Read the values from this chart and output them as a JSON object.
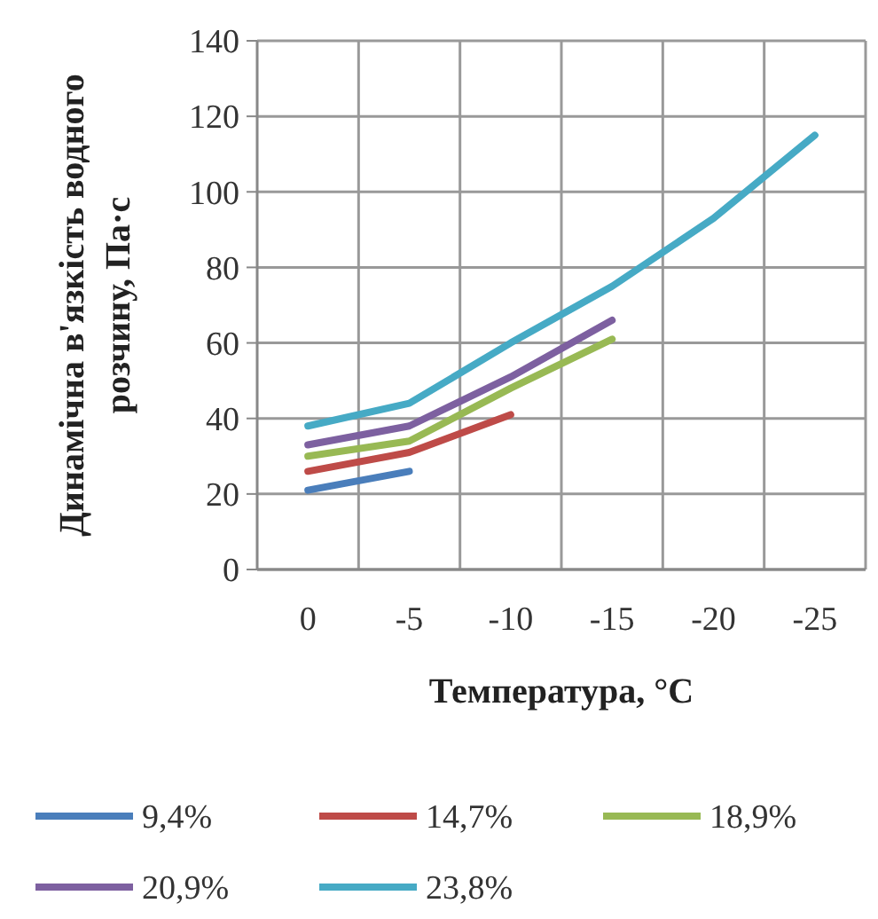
{
  "chart_data": {
    "type": "line",
    "xlabel": "Температура, °C",
    "ylabel": "Динамічна в'язкість водного розчину, Па·с",
    "categories": [
      "0",
      "-5",
      "-10",
      "-15",
      "-20",
      "-25"
    ],
    "series": [
      {
        "name": "9,4%",
        "color": "#4a7ebb",
        "values": [
          21,
          26,
          null,
          null,
          null,
          null
        ]
      },
      {
        "name": "14,7%",
        "color": "#be4b48",
        "values": [
          26,
          31,
          41,
          null,
          null,
          null
        ]
      },
      {
        "name": "18,9%",
        "color": "#98b954",
        "values": [
          30,
          34,
          48,
          61,
          null,
          null
        ]
      },
      {
        "name": "20,9%",
        "color": "#7d60a0",
        "values": [
          33,
          38,
          51,
          66,
          null,
          null
        ]
      },
      {
        "name": "23,8%",
        "color": "#46aac5",
        "values": [
          38,
          44,
          60,
          75,
          93,
          115
        ]
      }
    ],
    "ylim": [
      0,
      140
    ],
    "yticks": [
      0,
      20,
      40,
      60,
      80,
      100,
      120,
      140
    ],
    "grid": true,
    "legend": "bottom",
    "marker": "none",
    "line_style": "solid"
  }
}
